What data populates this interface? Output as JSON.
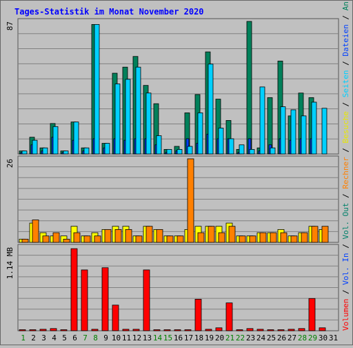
{
  "chart_data": {
    "type": "bar",
    "title": "Tages-Statistik im Monat November 2020",
    "categories": [
      "1",
      "2",
      "3",
      "4",
      "5",
      "6",
      "7",
      "8",
      "9",
      "10",
      "11",
      "12",
      "13",
      "14",
      "15",
      "16",
      "17",
      "18",
      "19",
      "20",
      "21",
      "22",
      "23",
      "24",
      "25",
      "26",
      "27",
      "28",
      "29",
      "30",
      "31"
    ],
    "weekend_days": [
      "1",
      "7",
      "8",
      "14",
      "15",
      "21",
      "22",
      "28",
      "29"
    ],
    "panels": [
      {
        "name": "top",
        "ymax_label": "87",
        "ylim": [
          0,
          87
        ],
        "series": [
          {
            "name": "Anfragen",
            "color": "#00805a",
            "values": [
              2,
              11,
              4,
              20,
              2,
              21,
              4,
              85,
              7,
              53,
              57,
              64,
              45,
              33,
              3,
              5,
              27,
              39,
              67,
              36,
              22,
              3,
              87,
              4,
              37,
              61,
              25,
              40,
              37,
              0,
              0
            ]
          },
          {
            "name": "Dateien",
            "color": "#0040ff",
            "values": [
              1,
              6,
              2,
              11,
              1,
              9,
              2,
              10,
              4,
              10,
              9,
              10,
              10,
              6,
              1,
              2,
              10,
              7,
              13,
              10,
              10,
              1,
              10,
              2,
              6,
              10,
              9,
              10,
              10,
              0,
              0
            ]
          },
          {
            "name": "Seiten",
            "color": "#00d0ff",
            "values": [
              2,
              9,
              4,
              18,
              2,
              21,
              4,
              85,
              7,
              46,
              49,
              57,
              40,
              12,
              3,
              3,
              5,
              27,
              59,
              17,
              10,
              6,
              3,
              44,
              4,
              31,
              29,
              25,
              34,
              30,
              0
            ]
          }
        ]
      },
      {
        "name": "middle",
        "ymax_label": "26",
        "ylim": [
          0,
          26
        ],
        "series": [
          {
            "name": "Besuche",
            "color": "#ffff00",
            "values": [
              1,
              6,
              3,
              2,
              2,
              5,
              2,
              3,
              4,
              5,
              5,
              2,
              5,
              4,
              2,
              2,
              4,
              5,
              5,
              5,
              6,
              2,
              2,
              3,
              3,
              4,
              2,
              3,
              5,
              4,
              0
            ]
          },
          {
            "name": "Rechner",
            "color": "#ff8000",
            "values": [
              1,
              7,
              2,
              3,
              1,
              3,
              2,
              2,
              4,
              4,
              4,
              2,
              5,
              4,
              2,
              2,
              26,
              3,
              5,
              3,
              5,
              2,
              2,
              3,
              3,
              3,
              2,
              3,
              5,
              5,
              0
            ]
          }
        ]
      },
      {
        "name": "bottom",
        "ymax_label": "1.14 MB",
        "ylim": [
          0,
          1.14
        ],
        "series": [
          {
            "name": "Volumen",
            "color": "#ff0000",
            "values": [
              0.01,
              0.01,
              0.02,
              0.03,
              0.01,
              1.12,
              0.83,
              0.02,
              0.86,
              0.35,
              0.02,
              0.02,
              0.83,
              0.01,
              0.01,
              0.01,
              0.01,
              0.43,
              0.02,
              0.04,
              0.38,
              0.01,
              0.03,
              0.02,
              0.01,
              0.01,
              0.02,
              0.03,
              0.44,
              0.04,
              0
            ]
          }
        ]
      }
    ],
    "legend": [
      {
        "text": "Volumen",
        "color": "#ff0000"
      },
      {
        "text": " / ",
        "color": "#000000"
      },
      {
        "text": "Vol. In",
        "color": "#0040ff"
      },
      {
        "text": " / ",
        "color": "#000000"
      },
      {
        "text": "Vol. Out",
        "color": "#00806a"
      },
      {
        "text": " / ",
        "color": "#000000"
      },
      {
        "text": "Rechner",
        "color": "#ff8000"
      },
      {
        "text": " / ",
        "color": "#000000"
      },
      {
        "text": "Besuche",
        "color": "#e8e800"
      },
      {
        "text": " / ",
        "color": "#000000"
      },
      {
        "text": "Seiten",
        "color": "#00d0ff"
      },
      {
        "text": " / ",
        "color": "#000000"
      },
      {
        "text": "Dateien",
        "color": "#0040ff"
      },
      {
        "text": " / ",
        "color": "#000000"
      },
      {
        "text": "Anfragen",
        "color": "#00805a"
      }
    ],
    "colors": {
      "background": "#c0c0c0",
      "title": "#0000ff",
      "weekday_label": "#000000",
      "weekend_label": "#008000",
      "gridline": "#808080"
    }
  }
}
